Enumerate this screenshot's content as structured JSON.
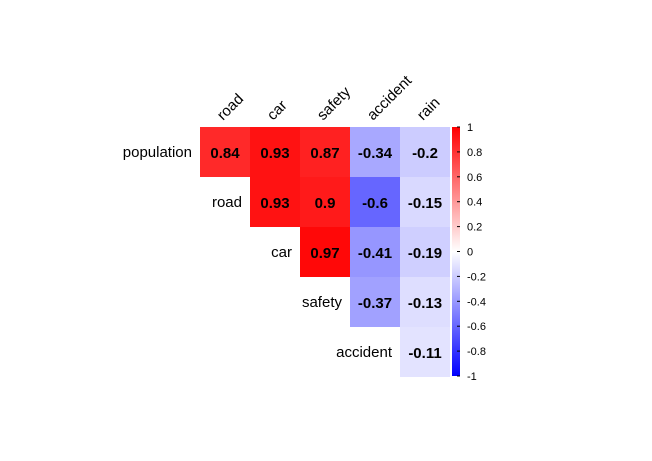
{
  "chart_data": {
    "type": "heatmap",
    "row_labels": [
      "population",
      "road",
      "car",
      "safety",
      "accident"
    ],
    "column_labels": [
      "road",
      "car",
      "safety",
      "accident",
      "rain"
    ],
    "cells": [
      {
        "row": "population",
        "col": "road",
        "value": 0.84
      },
      {
        "row": "population",
        "col": "car",
        "value": 0.93
      },
      {
        "row": "population",
        "col": "safety",
        "value": 0.87
      },
      {
        "row": "population",
        "col": "accident",
        "value": -0.34
      },
      {
        "row": "population",
        "col": "rain",
        "value": -0.2
      },
      {
        "row": "road",
        "col": "car",
        "value": 0.93
      },
      {
        "row": "road",
        "col": "safety",
        "value": 0.9
      },
      {
        "row": "road",
        "col": "accident",
        "value": -0.6
      },
      {
        "row": "road",
        "col": "rain",
        "value": -0.15
      },
      {
        "row": "car",
        "col": "safety",
        "value": 0.97
      },
      {
        "row": "car",
        "col": "accident",
        "value": -0.41
      },
      {
        "row": "car",
        "col": "rain",
        "value": -0.19
      },
      {
        "row": "safety",
        "col": "accident",
        "value": -0.37
      },
      {
        "row": "safety",
        "col": "rain",
        "value": -0.13
      },
      {
        "row": "accident",
        "col": "rain",
        "value": -0.11
      }
    ],
    "colorbar": {
      "range": [
        -1,
        1
      ],
      "tick_values": [
        1,
        0.8,
        0.6,
        0.4,
        0.2,
        0,
        -0.2,
        -0.4,
        -0.6,
        -0.8,
        -1
      ],
      "tick_labels": [
        "1",
        "0.8",
        "0.6",
        "0.4",
        "0.2",
        "0",
        "-0.2",
        "-0.4",
        "-0.6",
        "-0.8",
        "-1"
      ],
      "colors": {
        "negative": "#0000ff",
        "zero": "#ffffff",
        "positive": "#ff0000"
      }
    },
    "title": "",
    "xlabel": "",
    "ylabel": ""
  }
}
